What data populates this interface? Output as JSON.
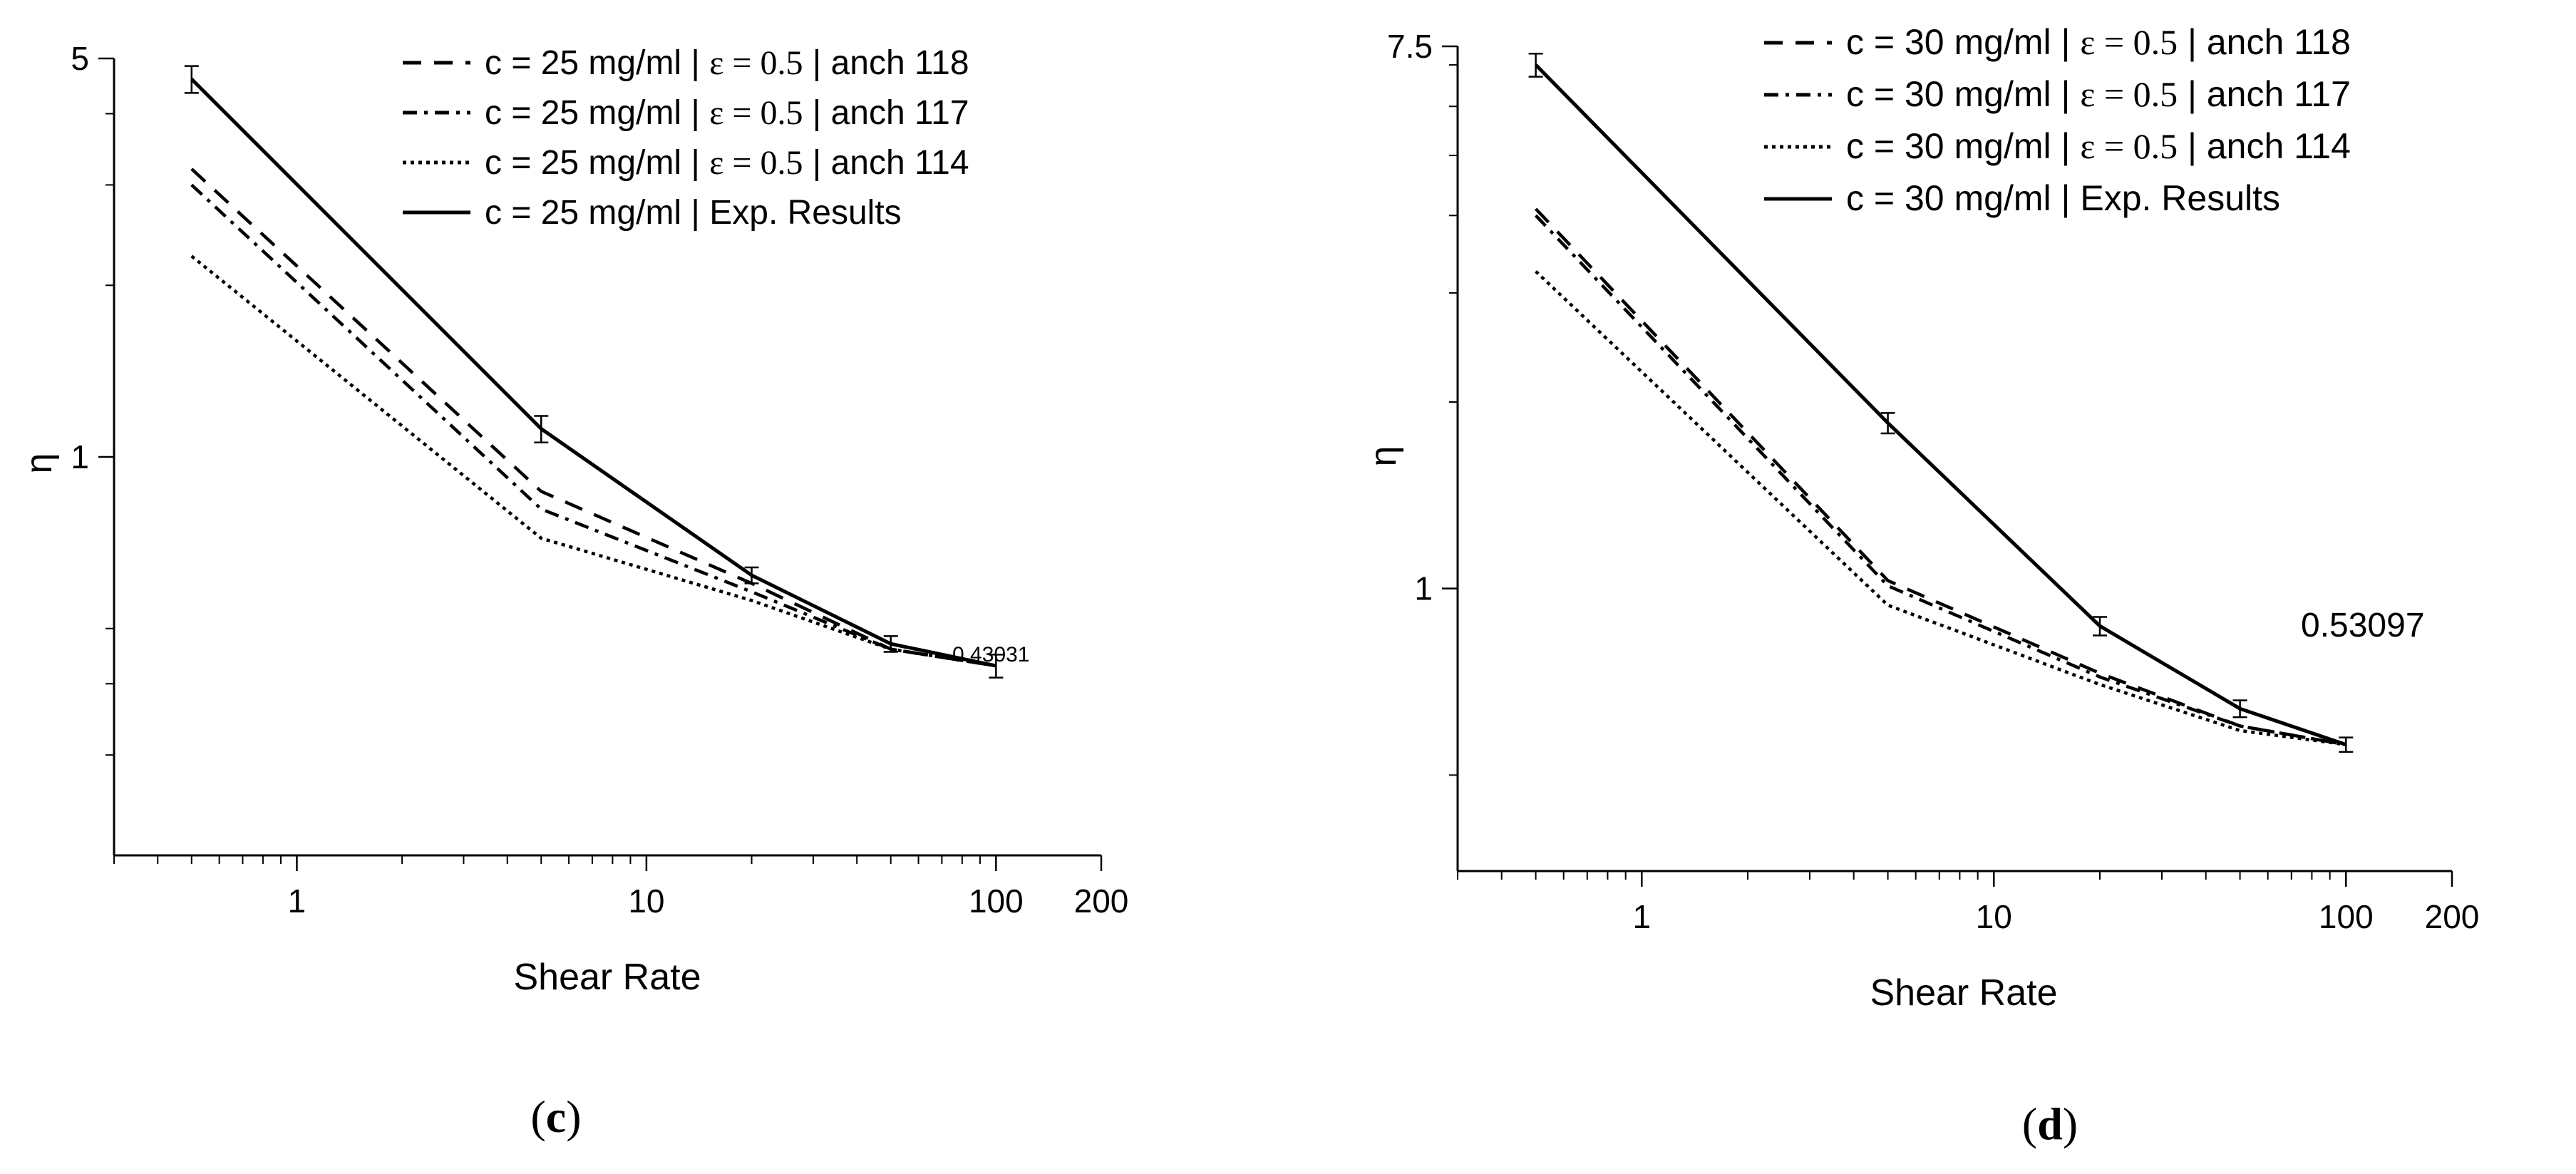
{
  "chart_data": [
    {
      "type": "line",
      "panel_label": "c",
      "title": "",
      "xlabel": "Shear Rate",
      "ylabel": "η",
      "xscale": "log",
      "yscale": "log",
      "xlim": [
        0.3,
        200
      ],
      "ylim": [
        0.2,
        5
      ],
      "xticks": [
        1,
        10,
        100,
        200
      ],
      "xtick_labels": [
        "1",
        "10",
        "100",
        "200"
      ],
      "yticks": [
        1,
        5
      ],
      "ytick_labels": [
        "1",
        "5"
      ],
      "legend_position": "top-right",
      "x": [
        0.5,
        5,
        20,
        50,
        100
      ],
      "series": [
        {
          "name_a": "c = 25 mg/ml | ",
          "name_eps": "ε = 0.5",
          "name_b": " | anch 118",
          "style": "dashed",
          "values": [
            3.2,
            0.87,
            0.6,
            0.46,
            0.43
          ]
        },
        {
          "name_a": "c = 25 mg/ml | ",
          "name_eps": "ε = 0.5",
          "name_b": " | anch 117",
          "style": "dashdot",
          "values": [
            3.0,
            0.81,
            0.58,
            0.46,
            0.43
          ]
        },
        {
          "name_a": "c = 25 mg/ml | ",
          "name_eps": "ε = 0.5",
          "name_b": " | anch 114",
          "style": "dotted",
          "values": [
            2.25,
            0.72,
            0.56,
            0.46,
            0.43
          ]
        },
        {
          "name_a": "c = 25 mg/ml | Exp. Results",
          "name_eps": "",
          "name_b": "",
          "style": "solid",
          "values": [
            4.6,
            1.12,
            0.62,
            0.47,
            0.43
          ],
          "errors": [
            0.25,
            0.06,
            0.02,
            0.015,
            0.02
          ]
        }
      ],
      "annotation": "0.43031"
    },
    {
      "type": "line",
      "panel_label": "d",
      "title": "",
      "xlabel": "Shear Rate",
      "ylabel": "η",
      "xscale": "log",
      "yscale": "log",
      "xlim": [
        0.3,
        200
      ],
      "ylim": [
        0.35,
        7.5
      ],
      "xticks": [
        1,
        10,
        100,
        200
      ],
      "xtick_labels": [
        "1",
        "10",
        "100",
        "200"
      ],
      "yticks": [
        1,
        7.5
      ],
      "ytick_labels": [
        "1",
        "7.5"
      ],
      "legend_position": "top-right",
      "x": [
        0.5,
        5,
        20,
        50,
        100
      ],
      "series": [
        {
          "name_a": "c = 30 mg/ml | ",
          "name_eps": "ε = 0.5",
          "name_b": " | anch 118",
          "style": "dashed",
          "values": [
            4.1,
            1.03,
            0.73,
            0.6,
            0.56
          ]
        },
        {
          "name_a": "c = 30 mg/ml | ",
          "name_eps": "ε = 0.5",
          "name_b": " | anch 117",
          "style": "dashdot",
          "values": [
            4.0,
            1.01,
            0.72,
            0.6,
            0.56
          ]
        },
        {
          "name_a": "c = 30 mg/ml | ",
          "name_eps": "ε = 0.5",
          "name_b": " | anch 114",
          "style": "dotted",
          "values": [
            3.25,
            0.94,
            0.7,
            0.59,
            0.56
          ]
        },
        {
          "name_a": "c = 30 mg/ml | Exp. Results",
          "name_eps": "",
          "name_b": "",
          "style": "solid",
          "values": [
            7.0,
            1.85,
            0.87,
            0.64,
            0.56
          ],
          "errors": [
            0.3,
            0.07,
            0.03,
            0.02,
            0.015
          ]
        }
      ],
      "annotation": "0.53097"
    }
  ]
}
